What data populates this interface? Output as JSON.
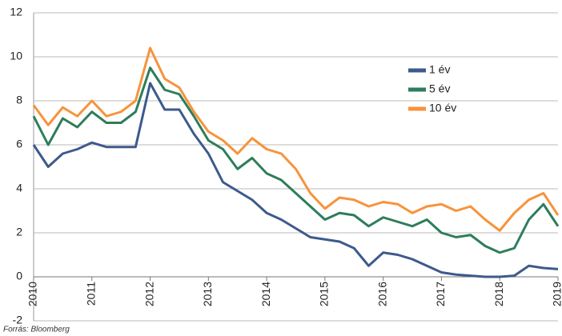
{
  "chart_data": {
    "type": "line",
    "source": "Forrás: Bloomberg",
    "x": [
      2010,
      2010.25,
      2010.5,
      2010.75,
      2011,
      2011.25,
      2011.5,
      2011.75,
      2012,
      2012.25,
      2012.5,
      2012.75,
      2013,
      2013.25,
      2013.5,
      2013.75,
      2014,
      2014.25,
      2014.5,
      2014.75,
      2015,
      2015.25,
      2015.5,
      2015.75,
      2016,
      2016.25,
      2016.5,
      2016.75,
      2017,
      2017.25,
      2017.5,
      2017.75,
      2018,
      2018.25,
      2018.5,
      2018.75,
      2019
    ],
    "series": [
      {
        "name": "1 év",
        "color": "#3d5a8c",
        "values": [
          6.0,
          5.0,
          5.6,
          5.8,
          6.1,
          5.9,
          5.9,
          5.9,
          8.8,
          7.6,
          7.6,
          6.5,
          5.6,
          4.3,
          3.9,
          3.5,
          2.9,
          2.6,
          2.2,
          1.8,
          1.7,
          1.6,
          1.3,
          0.5,
          1.1,
          1.0,
          0.8,
          0.5,
          0.2,
          0.1,
          0.05,
          0.0,
          0.0,
          0.05,
          0.5,
          0.4,
          0.35
        ]
      },
      {
        "name": "5 év",
        "color": "#2e7d5b",
        "values": [
          7.3,
          6.0,
          7.2,
          6.8,
          7.5,
          7.0,
          7.0,
          7.5,
          9.5,
          8.5,
          8.3,
          7.3,
          6.2,
          5.8,
          4.9,
          5.4,
          4.7,
          4.4,
          3.8,
          3.2,
          2.6,
          2.9,
          2.8,
          2.3,
          2.7,
          2.5,
          2.3,
          2.6,
          2.0,
          1.8,
          1.9,
          1.4,
          1.1,
          1.3,
          2.6,
          3.3,
          2.3
        ]
      },
      {
        "name": "10 év",
        "color": "#f7933b",
        "values": [
          7.8,
          6.9,
          7.7,
          7.3,
          8.0,
          7.3,
          7.5,
          8.0,
          10.4,
          9.0,
          8.6,
          7.5,
          6.6,
          6.2,
          5.6,
          6.3,
          5.8,
          5.6,
          4.9,
          3.8,
          3.1,
          3.6,
          3.5,
          3.2,
          3.4,
          3.3,
          2.9,
          3.2,
          3.3,
          3.0,
          3.2,
          2.6,
          2.1,
          2.9,
          3.5,
          3.8,
          2.8
        ]
      }
    ],
    "xlim": [
      2010,
      2019
    ],
    "xticks": [
      2010,
      2011,
      2012,
      2013,
      2014,
      2015,
      2016,
      2017,
      2018,
      2019
    ],
    "ylim": [
      -2,
      12
    ],
    "yticks": [
      -2,
      0,
      2,
      4,
      6,
      8,
      10,
      12
    ],
    "grid": true,
    "legend": "upper right"
  }
}
